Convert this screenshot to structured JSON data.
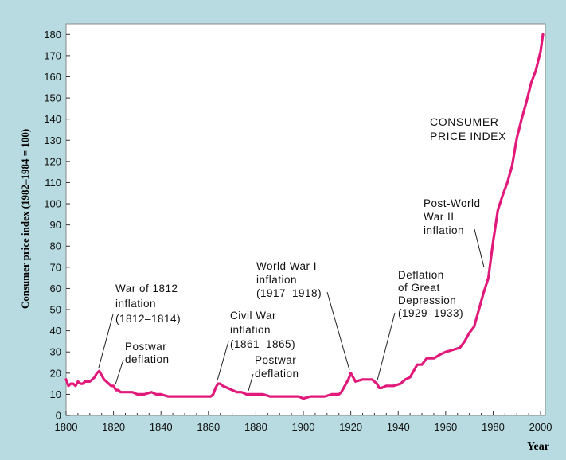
{
  "chart_data": {
    "type": "line",
    "title": "",
    "xlabel": "Year",
    "ylabel": "Consumer price index (1982–1984 = 100)",
    "xlim": [
      1800,
      2002
    ],
    "ylim": [
      0,
      185
    ],
    "x_ticks": [
      1800,
      1820,
      1840,
      1860,
      1880,
      1900,
      1920,
      1940,
      1960,
      1980,
      2000
    ],
    "y_ticks": [
      0,
      10,
      20,
      30,
      40,
      50,
      60,
      70,
      80,
      90,
      100,
      110,
      120,
      130,
      140,
      150,
      160,
      170,
      180
    ],
    "grid": false,
    "line_color": "#e0197a",
    "series": [
      {
        "name": "CONSUMER PRICE INDEX",
        "x": [
          1800,
          1801,
          1802,
          1803,
          1804,
          1805,
          1806,
          1807,
          1808,
          1809,
          1810,
          1811,
          1812,
          1813,
          1814,
          1815,
          1816,
          1817,
          1818,
          1819,
          1820,
          1821,
          1822,
          1823,
          1825,
          1828,
          1830,
          1833,
          1836,
          1838,
          1840,
          1843,
          1846,
          1849,
          1852,
          1855,
          1858,
          1860,
          1861,
          1862,
          1863,
          1864,
          1865,
          1866,
          1868,
          1870,
          1872,
          1874,
          1876,
          1878,
          1880,
          1883,
          1886,
          1889,
          1892,
          1895,
          1898,
          1900,
          1903,
          1906,
          1909,
          1912,
          1915,
          1916,
          1917,
          1918,
          1919,
          1920,
          1921,
          1922,
          1925,
          1929,
          1930,
          1931,
          1932,
          1933,
          1935,
          1938,
          1941,
          1943,
          1945,
          1947,
          1948,
          1950,
          1952,
          1955,
          1958,
          1960,
          1963,
          1966,
          1968,
          1970,
          1972,
          1974,
          1976,
          1978,
          1980,
          1982,
          1984,
          1986,
          1988,
          1990,
          1992,
          1994,
          1996,
          1998,
          2000,
          2001
        ],
        "y": [
          17,
          14,
          15,
          15,
          14,
          16,
          15,
          15,
          16,
          16,
          16,
          17,
          18,
          20,
          21,
          19,
          17,
          16,
          15,
          14,
          14,
          12,
          12,
          11,
          11,
          11,
          10,
          10,
          11,
          10,
          10,
          9,
          9,
          9,
          9,
          9,
          9,
          9,
          9,
          10,
          13,
          15,
          15,
          14,
          13,
          12,
          11,
          11,
          10,
          10,
          10,
          10,
          9,
          9,
          9,
          9,
          9,
          8,
          9,
          9,
          9,
          10,
          10,
          11,
          13,
          15,
          17,
          20,
          18,
          16,
          17,
          17,
          16,
          15,
          13,
          13,
          14,
          14,
          15,
          17,
          18,
          22,
          24,
          24,
          27,
          27,
          29,
          30,
          31,
          32,
          35,
          39,
          42,
          50,
          58,
          65,
          82,
          97,
          104,
          110,
          118,
          131,
          140,
          148,
          157,
          163,
          172,
          180
        ]
      }
    ]
  },
  "annotations": {
    "war1812": [
      "War of 1812",
      "inflation",
      "(1812–1814)"
    ],
    "postwar1": [
      "Postwar",
      "deflation"
    ],
    "civilwar": [
      "Civil War",
      "inflation",
      "(1861–1865)"
    ],
    "postwar2": [
      "Postwar",
      "deflation"
    ],
    "ww1": [
      "World War I",
      "inflation",
      "(1917–1918)"
    ],
    "depression": [
      "Deflation",
      "of Great",
      "Depression",
      "(1929–1933)"
    ],
    "postww2": [
      "Post-World",
      "War II",
      "inflation"
    ],
    "series_label": [
      "CONSUMER",
      "PRICE INDEX"
    ]
  }
}
